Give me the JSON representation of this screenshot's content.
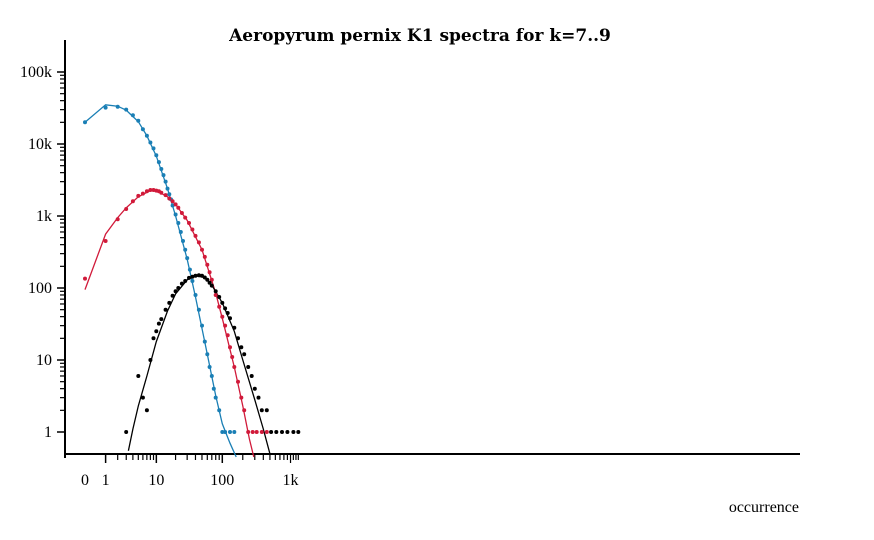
{
  "chart_data": {
    "type": "scatter",
    "title": "Aeropyrum pernix K1 spectra for k=7..9",
    "xlabel": "occurrence",
    "ylabel": "",
    "x_scale": "log(1+x)",
    "y_scale": "log",
    "xlim": [
      0,
      1400
    ],
    "ylim": [
      0.5,
      200000
    ],
    "x_ticks": [
      {
        "value": 0,
        "label": "0"
      },
      {
        "value": 1,
        "label": "1"
      },
      {
        "value": 10,
        "label": "10"
      },
      {
        "value": 100,
        "label": "100"
      },
      {
        "value": 1000,
        "label": "1k"
      }
    ],
    "y_ticks": [
      {
        "value": 1,
        "label": "1"
      },
      {
        "value": 10,
        "label": "10"
      },
      {
        "value": 100,
        "label": "100"
      },
      {
        "value": 1000,
        "label": "1k"
      },
      {
        "value": 10000,
        "label": "10k"
      },
      {
        "value": 100000,
        "label": "100k"
      }
    ],
    "grid": false,
    "legend": "none",
    "series": [
      {
        "color": "#1a7fb5",
        "points": [
          [
            0,
            20000
          ],
          [
            1,
            32000
          ],
          [
            2,
            33000
          ],
          [
            3,
            30000
          ],
          [
            4,
            25000
          ],
          [
            5,
            21000
          ],
          [
            6,
            16000
          ],
          [
            7,
            13000
          ],
          [
            8,
            10500
          ],
          [
            9,
            8700
          ],
          [
            10,
            7000
          ],
          [
            11,
            5600
          ],
          [
            12,
            4500
          ],
          [
            13,
            3700
          ],
          [
            14,
            3000
          ],
          [
            15,
            2400
          ],
          [
            16,
            2000
          ],
          [
            17,
            1700
          ],
          [
            18,
            1400
          ],
          [
            20,
            1050
          ],
          [
            22,
            800
          ],
          [
            24,
            600
          ],
          [
            26,
            450
          ],
          [
            28,
            340
          ],
          [
            30,
            260
          ],
          [
            33,
            180
          ],
          [
            36,
            125
          ],
          [
            40,
            80
          ],
          [
            45,
            50
          ],
          [
            50,
            30
          ],
          [
            55,
            18
          ],
          [
            60,
            12
          ],
          [
            65,
            8
          ],
          [
            70,
            6
          ],
          [
            75,
            4
          ],
          [
            80,
            3
          ],
          [
            90,
            2
          ],
          [
            100,
            1
          ],
          [
            110,
            1
          ],
          [
            130,
            1
          ],
          [
            150,
            1
          ]
        ],
        "fit": [
          [
            0,
            20000
          ],
          [
            1,
            35000
          ],
          [
            2,
            33500
          ],
          [
            3,
            29500
          ],
          [
            5,
            20500
          ],
          [
            7,
            13000
          ],
          [
            10,
            6800
          ],
          [
            15,
            2400
          ],
          [
            20,
            1000
          ],
          [
            30,
            250
          ],
          [
            40,
            75
          ],
          [
            60,
            12
          ],
          [
            80,
            3.2
          ],
          [
            100,
            1.3
          ],
          [
            130,
            0.7
          ],
          [
            160,
            0.45
          ]
        ]
      },
      {
        "color": "#d11a3a",
        "points": [
          [
            0,
            135
          ],
          [
            1,
            450
          ],
          [
            2,
            900
          ],
          [
            3,
            1250
          ],
          [
            4,
            1600
          ],
          [
            5,
            1900
          ],
          [
            6,
            2050
          ],
          [
            7,
            2200
          ],
          [
            8,
            2300
          ],
          [
            9,
            2300
          ],
          [
            10,
            2250
          ],
          [
            11,
            2200
          ],
          [
            12,
            2100
          ],
          [
            14,
            1950
          ],
          [
            16,
            1750
          ],
          [
            18,
            1600
          ],
          [
            20,
            1450
          ],
          [
            22,
            1300
          ],
          [
            25,
            1100
          ],
          [
            28,
            950
          ],
          [
            32,
            800
          ],
          [
            36,
            650
          ],
          [
            40,
            530
          ],
          [
            45,
            430
          ],
          [
            50,
            340
          ],
          [
            55,
            270
          ],
          [
            60,
            210
          ],
          [
            65,
            165
          ],
          [
            70,
            130
          ],
          [
            80,
            80
          ],
          [
            90,
            55
          ],
          [
            100,
            40
          ],
          [
            110,
            30
          ],
          [
            120,
            22
          ],
          [
            130,
            15
          ],
          [
            140,
            11
          ],
          [
            150,
            8
          ],
          [
            170,
            5
          ],
          [
            190,
            3
          ],
          [
            210,
            2
          ],
          [
            240,
            1
          ],
          [
            280,
            1
          ],
          [
            320,
            1
          ],
          [
            380,
            1
          ],
          [
            450,
            1
          ]
        ],
        "fit": [
          [
            0,
            95
          ],
          [
            1,
            560
          ],
          [
            2,
            950
          ],
          [
            3,
            1300
          ],
          [
            5,
            1850
          ],
          [
            8,
            2250
          ],
          [
            10,
            2250
          ],
          [
            15,
            1850
          ],
          [
            20,
            1450
          ],
          [
            30,
            870
          ],
          [
            50,
            340
          ],
          [
            80,
            85
          ],
          [
            100,
            38
          ],
          [
            150,
            8
          ],
          [
            200,
            2.3
          ],
          [
            250,
            0.8
          ],
          [
            290,
            0.45
          ]
        ]
      },
      {
        "color": "#000000",
        "points": [
          [
            3,
            1
          ],
          [
            5,
            6
          ],
          [
            6,
            3
          ],
          [
            7,
            2
          ],
          [
            8,
            10
          ],
          [
            9,
            20
          ],
          [
            10,
            25
          ],
          [
            11,
            32
          ],
          [
            12,
            37
          ],
          [
            14,
            50
          ],
          [
            16,
            62
          ],
          [
            18,
            78
          ],
          [
            20,
            90
          ],
          [
            22,
            100
          ],
          [
            25,
            115
          ],
          [
            28,
            125
          ],
          [
            32,
            138
          ],
          [
            36,
            143
          ],
          [
            40,
            148
          ],
          [
            45,
            150
          ],
          [
            50,
            148
          ],
          [
            55,
            140
          ],
          [
            60,
            130
          ],
          [
            65,
            118
          ],
          [
            70,
            108
          ],
          [
            80,
            90
          ],
          [
            90,
            75
          ],
          [
            100,
            62
          ],
          [
            110,
            52
          ],
          [
            120,
            45
          ],
          [
            130,
            38
          ],
          [
            150,
            28
          ],
          [
            170,
            20
          ],
          [
            190,
            15
          ],
          [
            210,
            12
          ],
          [
            240,
            8
          ],
          [
            270,
            6
          ],
          [
            300,
            4
          ],
          [
            340,
            3
          ],
          [
            380,
            2
          ],
          [
            450,
            2
          ],
          [
            520,
            1
          ],
          [
            620,
            1
          ],
          [
            750,
            1
          ],
          [
            900,
            1
          ],
          [
            1100,
            1
          ],
          [
            1300,
            1
          ]
        ],
        "fit": [
          [
            3.3,
            0.55
          ],
          [
            4,
            1.1
          ],
          [
            5,
            2.3
          ],
          [
            7,
            6
          ],
          [
            10,
            18
          ],
          [
            15,
            48
          ],
          [
            20,
            83
          ],
          [
            30,
            130
          ],
          [
            40,
            148
          ],
          [
            55,
            140
          ],
          [
            70,
            110
          ],
          [
            100,
            62
          ],
          [
            150,
            25
          ],
          [
            200,
            10
          ],
          [
            300,
            2.8
          ],
          [
            400,
            1.1
          ],
          [
            500,
            0.5
          ]
        ]
      }
    ]
  }
}
